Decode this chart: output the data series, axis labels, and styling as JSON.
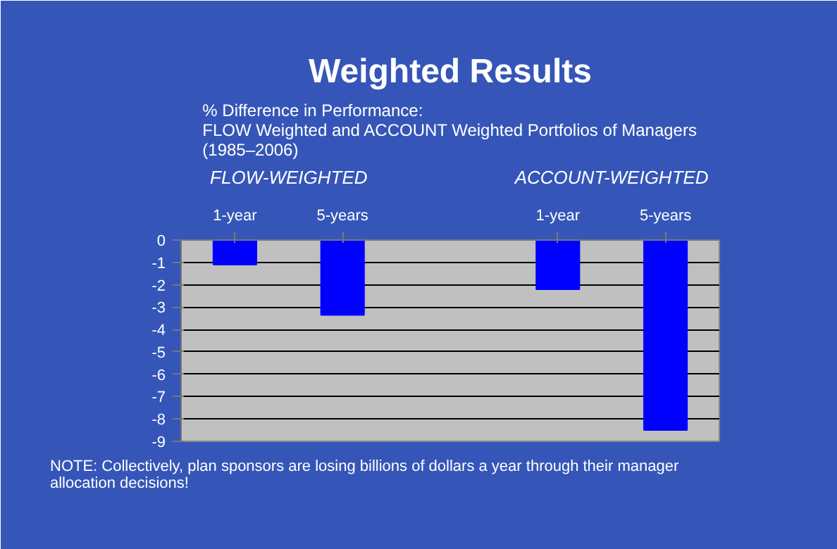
{
  "chart_data": {
    "type": "bar",
    "title": "Weighted Results",
    "subtitle": "% Difference in Performance:\nFLOW Weighted and ACCOUNT Weighted Portfolios of Managers\n(1985–2006)",
    "categories": [
      "1-year",
      "5-years",
      null,
      "1-year",
      "5-years"
    ],
    "values": [
      -1.1,
      -3.35,
      null,
      -2.2,
      -8.5
    ],
    "color": "#0000ff",
    "ylim": [
      -9,
      0
    ],
    "yticks": [
      -9,
      -8,
      -7,
      -6,
      -5,
      -4,
      -3,
      -2,
      -1,
      0
    ],
    "grid": "y",
    "annotations": [
      "FLOW-WEIGHTED",
      "ACCOUNT-WEIGHTED",
      "NOTE: Collectively, plan sponsors are losing billions of dollars a year through their manager\nallocation decisions!"
    ]
  }
}
